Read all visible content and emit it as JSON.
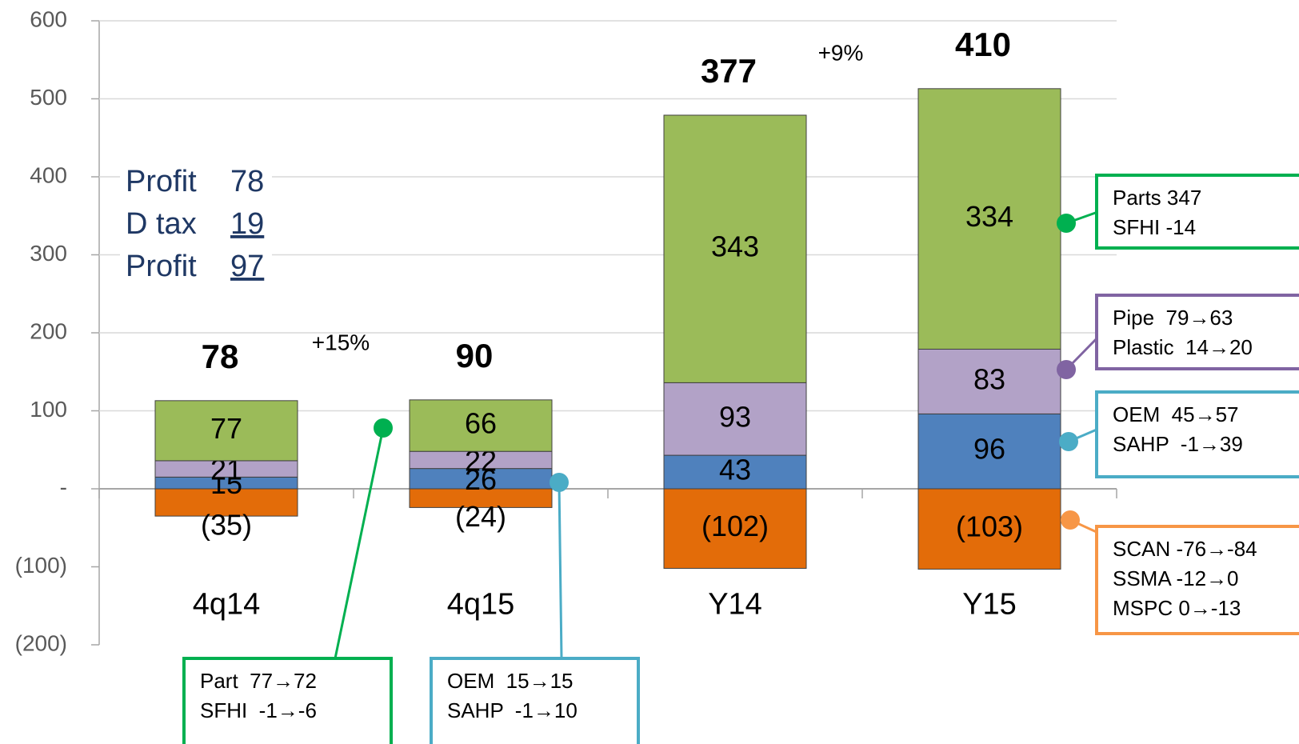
{
  "chart_data": {
    "type": "stacked_bar",
    "categories": [
      "4q14",
      "4q15",
      "Y14",
      "Y15"
    ],
    "series": [
      {
        "color": "#e36c09",
        "values": [
          -35,
          -24,
          -102,
          -103
        ],
        "value_labels": [
          "(35)",
          "(24)",
          "(102)",
          "(103)"
        ]
      },
      {
        "color": "#4f81bd",
        "values": [
          15,
          26,
          43,
          96
        ]
      },
      {
        "color": "#b2a2c7",
        "values": [
          21,
          22,
          93,
          83
        ]
      },
      {
        "color": "#9bbb59",
        "values": [
          77,
          66,
          343,
          334
        ]
      }
    ],
    "totals": [
      78,
      90,
      377,
      410
    ],
    "growth": [
      "+15%",
      "+9%"
    ],
    "ylim": [
      -200,
      600
    ],
    "yticks": [
      {
        "value": -200,
        "label": "(200)"
      },
      {
        "value": -100,
        "label": "(100)"
      },
      {
        "value": 0,
        "label": "-"
      },
      100,
      200,
      300,
      400,
      500,
      600
    ],
    "grid": true,
    "profit_box": [
      {
        "label": "Profit",
        "value": 78
      },
      {
        "label": "D tax",
        "value": 19
      },
      {
        "label": "Profit",
        "value": 97
      }
    ],
    "callouts": [
      {
        "color": "#00b050",
        "lines": [
          "Parts 347",
          "SFHI -14"
        ]
      },
      {
        "color": "#8064a2",
        "lines": [
          "Pipe  79→63",
          "Plastic  14→20"
        ]
      },
      {
        "color": "#4bacc6",
        "lines": [
          "OEM  45→57",
          "SAHP  -1→39"
        ]
      },
      {
        "color": "#f79646",
        "lines": [
          "SCAN -76→-84",
          "SSMA -12→0",
          "MSPC 0→-13"
        ]
      },
      {
        "color": "#00b050",
        "lines": [
          "Part  77→72",
          "SFHI  -1→-6"
        ]
      },
      {
        "color": "#4bacc6",
        "lines": [
          "OEM  15→15",
          "SAHP  -1→10"
        ]
      }
    ]
  }
}
